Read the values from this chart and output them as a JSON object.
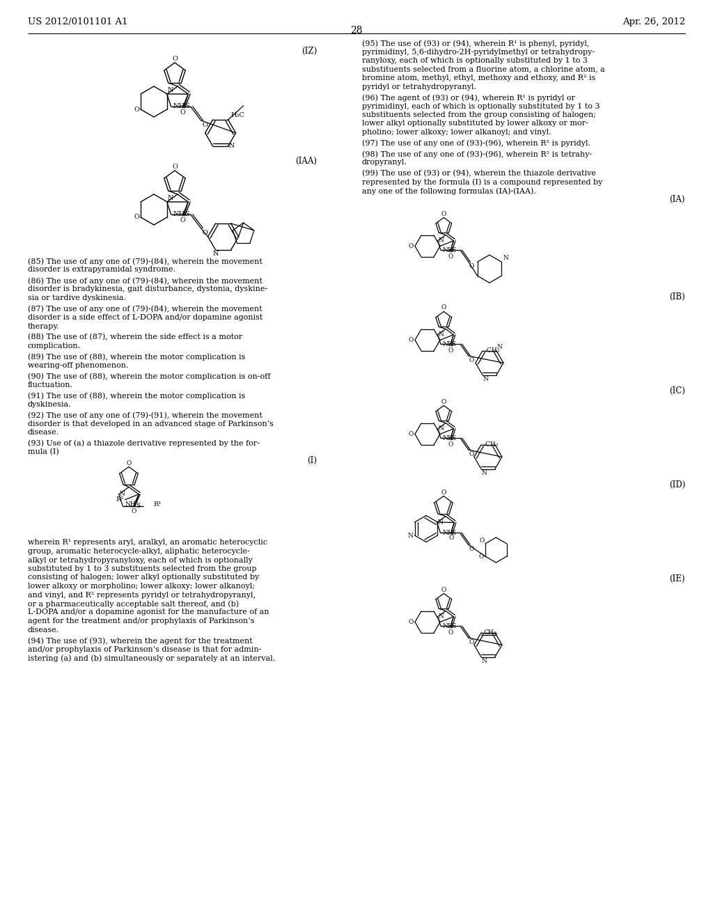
{
  "bg_color": "#ffffff",
  "header_left": "US 2012/0101101 A1",
  "header_right": "Apr. 26, 2012",
  "page_number": "28",
  "body_fs": 8.3,
  "header_fs": 9.5,
  "label_fs": 8.5
}
